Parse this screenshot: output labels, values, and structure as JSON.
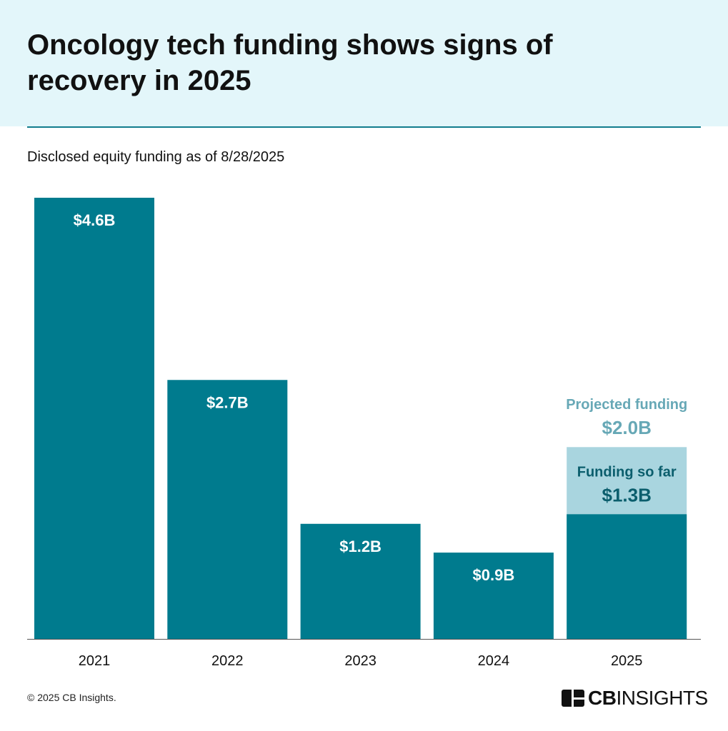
{
  "header": {
    "title": "Oncology tech funding shows signs of recovery in 2025",
    "subtitle": "Disclosed equity funding as of 8/28/2025"
  },
  "chart_data": {
    "type": "bar",
    "title": "Oncology tech funding shows signs of recovery in 2025",
    "subtitle": "Disclosed equity funding as of 8/28/2025",
    "categories": [
      "2021",
      "2022",
      "2023",
      "2024",
      "2025"
    ],
    "values": [
      4.6,
      2.7,
      1.2,
      0.9,
      1.3
    ],
    "data_labels": [
      "$4.6B",
      "$2.7B",
      "$1.2B",
      "$0.9B",
      "$1.3B"
    ],
    "unit": "USD billions",
    "projection": {
      "category": "2025",
      "value": 2.0,
      "label": "Projected funding",
      "value_label": "$2.0B",
      "so_far_label": "Funding so far"
    },
    "ylim": [
      0,
      4.6
    ],
    "grid": false,
    "legend": "none",
    "colors": {
      "bar": "#007b8e",
      "projected": "#a9d5df",
      "projected_text": "#67a8b6",
      "so_far_text": "#0b5e6d"
    }
  },
  "footer": {
    "copyright": "© 2025 CB Insights.",
    "logo_text": "CBINSIGHTS"
  }
}
